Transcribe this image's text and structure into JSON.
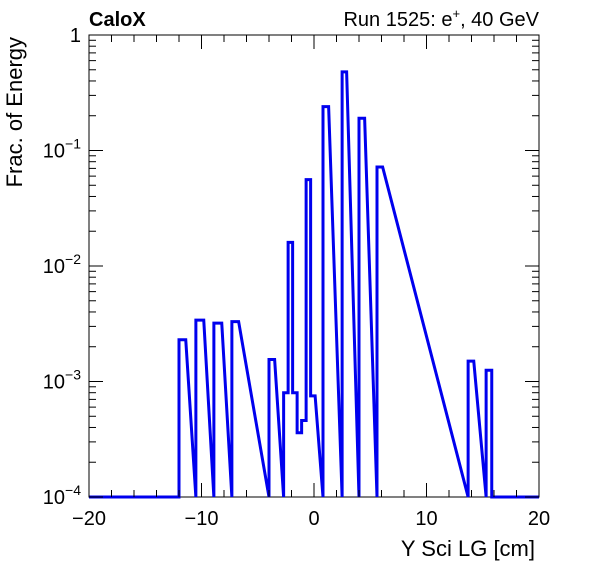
{
  "chart_data": {
    "type": "histogram",
    "title_left": "CaloX",
    "title_right_prefix": "Run 1525: e",
    "title_right_sup": "+",
    "title_right_suffix": ", 40 GeV",
    "xlabel": "Y Sci LG [cm]",
    "ylabel": "Frac. of Energy",
    "xlim": [
      -20,
      20
    ],
    "ylim": [
      0.0001,
      1
    ],
    "yscale": "log",
    "x_ticks": [
      "−20",
      "−10",
      "0",
      "10",
      "20"
    ],
    "y_ticks": [
      {
        "base": "1",
        "exp": ""
      },
      {
        "base": "10",
        "exp": "−1"
      },
      {
        "base": "10",
        "exp": "−2"
      },
      {
        "base": "10",
        "exp": "−3"
      },
      {
        "base": "10",
        "exp": "−4"
      }
    ],
    "line_color": "#0000ee",
    "grid": false,
    "bins": [
      {
        "x0": -12.0,
        "x1": -11.4,
        "y": 0.0023
      },
      {
        "x0": -10.5,
        "x1": -9.8,
        "y": 0.0034
      },
      {
        "x0": -8.9,
        "x1": -8.2,
        "y": 0.0032
      },
      {
        "x0": -7.3,
        "x1": -6.7,
        "y": 0.0033
      },
      {
        "x0": -4.0,
        "x1": -3.5,
        "y": 0.00155
      },
      {
        "x0": -2.7,
        "x1": -2.3,
        "y": 0.0008
      },
      {
        "x0": -2.3,
        "x1": -1.9,
        "y": 0.016
      },
      {
        "x0": -1.9,
        "x1": -1.5,
        "y": 0.0008
      },
      {
        "x0": -1.5,
        "x1": -1.1,
        "y": 0.00036
      },
      {
        "x0": -1.1,
        "x1": -0.7,
        "y": 0.00046
      },
      {
        "x0": -0.7,
        "x1": -0.3,
        "y": 0.056
      },
      {
        "x0": -0.3,
        "x1": 0.1,
        "y": 0.00075
      },
      {
        "x0": 0.8,
        "x1": 1.3,
        "y": 0.24
      },
      {
        "x0": 2.5,
        "x1": 2.9,
        "y": 0.48
      },
      {
        "x0": 4.0,
        "x1": 4.5,
        "y": 0.19
      },
      {
        "x0": 5.6,
        "x1": 6.1,
        "y": 0.072
      },
      {
        "x0": 13.7,
        "x1": 14.2,
        "y": 0.0015
      },
      {
        "x0": 15.3,
        "x1": 15.8,
        "y": 0.00125
      }
    ]
  }
}
